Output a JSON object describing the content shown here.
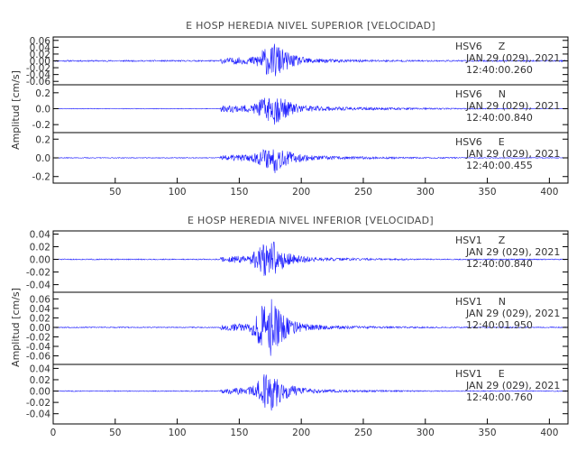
{
  "colors": {
    "trace": "#1c1cff",
    "frame": "#000000",
    "text": "#333333"
  },
  "chart_data": [
    {
      "type": "line",
      "title": "E HOSP HEREDIA NIVEL SUPERIOR [VELOCIDAD]",
      "ylabel": "Amplitud [cm/s]",
      "xlim": [
        0,
        415
      ],
      "x_ticks": [
        50,
        100,
        150,
        200,
        250,
        300,
        350,
        400
      ],
      "x_tick_labels": [
        "50",
        "100",
        "150",
        "200",
        "250",
        "300",
        "350",
        "400"
      ],
      "grid": false,
      "channels": [
        {
          "station": "HSV6",
          "component": "Z",
          "date": "JAN 29 (029), 2021",
          "time": "12:40:00.260",
          "ylim": [
            -0.07,
            0.07
          ],
          "y_ticks": [
            -0.06,
            -0.04,
            -0.02,
            0.0,
            0.02,
            0.04,
            0.06
          ],
          "y_tick_labels": [
            "-0.06",
            "-0.04",
            "-0.02",
            "0.00",
            "0.02",
            "0.04",
            "0.06"
          ],
          "envelope": {
            "onset": 135,
            "peak": 178,
            "peak_amplitude": 0.055,
            "noise_amplitude": 0.002,
            "coda_amplitude": 0.008,
            "seed": 11
          }
        },
        {
          "station": "HSV6",
          "component": "N",
          "date": "JAN 29 (029), 2021",
          "time": "12:40:00.840",
          "ylim": [
            -0.3,
            0.3
          ],
          "y_ticks": [
            -0.2,
            0.0,
            0.2
          ],
          "y_tick_labels": [
            "-0.2",
            "0.0",
            "0.2"
          ],
          "envelope": {
            "onset": 135,
            "peak": 178,
            "peak_amplitude": 0.2,
            "noise_amplitude": 0.004,
            "coda_amplitude": 0.04,
            "seed": 23
          }
        },
        {
          "station": "HSV6",
          "component": "E",
          "date": "JAN 29 (029), 2021",
          "time": "12:40:00.455",
          "ylim": [
            -0.27,
            0.27
          ],
          "y_ticks": [
            -0.2,
            0.0,
            0.2
          ],
          "y_tick_labels": [
            "-0.2",
            "0.0",
            "0.2"
          ],
          "envelope": {
            "onset": 135,
            "peak": 178,
            "peak_amplitude": 0.15,
            "noise_amplitude": 0.004,
            "coda_amplitude": 0.03,
            "seed": 37
          }
        }
      ]
    },
    {
      "type": "line",
      "title": "E HOSP HEREDIA NIVEL INFERIOR [VELOCIDAD]",
      "ylabel": "Amplitud [cm/s]",
      "xlim": [
        0,
        415
      ],
      "x_ticks": [
        0,
        50,
        100,
        150,
        200,
        250,
        300,
        350,
        400
      ],
      "x_tick_labels": [
        "0",
        "50",
        "100",
        "150",
        "200",
        "250",
        "300",
        "350",
        "400"
      ],
      "grid": false,
      "channels": [
        {
          "station": "HSV1",
          "component": "Z",
          "date": "JAN 29 (029), 2021",
          "time": "12:40:00.840",
          "ylim": [
            -0.052,
            0.045
          ],
          "y_ticks": [
            -0.04,
            -0.02,
            0.0,
            0.02,
            0.04
          ],
          "y_tick_labels": [
            "-0.04",
            "-0.02",
            "0.00",
            "0.02",
            "0.04"
          ],
          "envelope": {
            "onset": 135,
            "peak": 175,
            "peak_amplitude": 0.036,
            "noise_amplitude": 0.0008,
            "coda_amplitude": 0.004,
            "seed": 51
          }
        },
        {
          "station": "HSV1",
          "component": "N",
          "date": "JAN 29 (029), 2021",
          "time": "12:40:01.950",
          "ylim": [
            -0.078,
            0.074
          ],
          "y_ticks": [
            -0.06,
            -0.04,
            -0.02,
            0.0,
            0.02,
            0.04,
            0.06
          ],
          "y_tick_labels": [
            "-0.06",
            "-0.04",
            "-0.02",
            "0.00",
            "0.02",
            "0.04",
            "0.06"
          ],
          "envelope": {
            "onset": 135,
            "peak": 175,
            "peak_amplitude": 0.065,
            "noise_amplitude": 0.001,
            "coda_amplitude": 0.006,
            "seed": 67
          }
        },
        {
          "station": "HSV1",
          "component": "E",
          "date": "JAN 29 (029), 2021",
          "time": "12:40:00.760",
          "ylim": [
            -0.058,
            0.047
          ],
          "y_ticks": [
            -0.04,
            -0.02,
            0.0,
            0.02,
            0.04
          ],
          "y_tick_labels": [
            "-0.04",
            "-0.02",
            "0.00",
            "0.02",
            "0.04"
          ],
          "envelope": {
            "onset": 135,
            "peak": 175,
            "peak_amplitude": 0.04,
            "noise_amplitude": 0.0008,
            "coda_amplitude": 0.004,
            "seed": 83
          }
        }
      ]
    }
  ]
}
